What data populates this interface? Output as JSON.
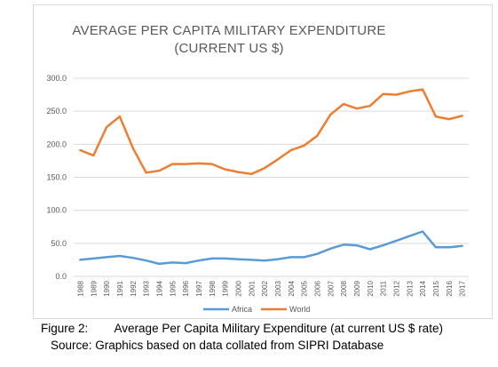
{
  "chart_data": {
    "type": "line",
    "title": [
      "AVERAGE PER CAPITA MILITARY EXPENDITURE",
      "(CURRENT US $)"
    ],
    "xlabel": "",
    "ylabel": "",
    "categories": [
      "1988",
      "1989",
      "1990",
      "1991",
      "1992",
      "1993",
      "1994",
      "1995",
      "1996",
      "1997",
      "1998",
      "1999",
      "2000",
      "2001",
      "2002",
      "2003",
      "2004",
      "2005",
      "2006",
      "2007",
      "2008",
      "2009",
      "2010",
      "2011",
      "2012",
      "2013",
      "2014",
      "2015",
      "2016",
      "2017"
    ],
    "y_ticks": [
      "0.0",
      "50.0",
      "100.0",
      "150.0",
      "200.0",
      "250.0",
      "300.0"
    ],
    "ylim": [
      0,
      300
    ],
    "grid": true,
    "legend_position": "bottom",
    "series": [
      {
        "name": "Africa",
        "color": "#5b9bd5",
        "values": [
          25,
          27,
          29,
          31,
          28,
          24,
          19,
          21,
          20,
          24,
          27,
          27,
          26,
          25,
          24,
          26,
          29,
          29,
          34,
          42,
          48,
          47,
          41,
          47,
          54,
          61,
          68,
          44,
          44,
          46
        ]
      },
      {
        "name": "World",
        "color": "#ed7d31",
        "values": [
          191,
          183,
          226,
          242,
          194,
          157,
          160,
          170,
          170,
          171,
          170,
          162,
          158,
          155,
          164,
          177,
          191,
          198,
          213,
          245,
          261,
          254,
          258,
          276,
          275,
          280,
          283,
          242,
          238,
          243
        ]
      }
    ]
  },
  "caption": {
    "figure": "Figure 2:        Average Per Capita Military Expenditure (at current US $ rate)",
    "source": "Source: Graphics based on data collated from SIPRI Database"
  }
}
